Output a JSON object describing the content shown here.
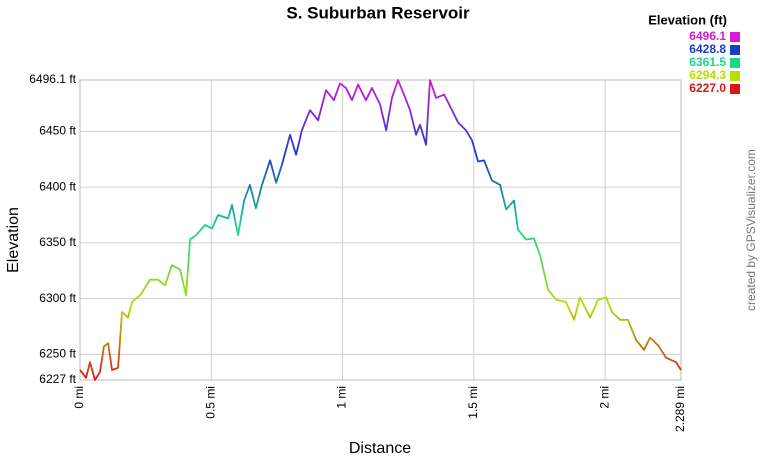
{
  "chart_data": {
    "type": "line",
    "title": "S. Suburban Reservoir",
    "x_label": "Distance",
    "y_label": "Elevation",
    "credit": "created by GPSVisualizer.com",
    "legend_title": "Elevation (ft)",
    "legend": [
      {
        "value": 6496.1,
        "label": "6496.1",
        "color": "#d41ad4"
      },
      {
        "value": 6428.8,
        "label": "6428.8",
        "color": "#1a3ccc"
      },
      {
        "value": 6361.5,
        "label": "6361.5",
        "color": "#1ad68a"
      },
      {
        "value": 6294.3,
        "label": "6294.3",
        "color": "#b4e000"
      },
      {
        "value": 6227,
        "label": "6227.0",
        "color": "#d81818"
      }
    ],
    "xlim": [
      0,
      2.289
    ],
    "ylim": [
      6227,
      6496.1
    ],
    "xticks": [
      {
        "value": 0,
        "label": "0 mi"
      },
      {
        "value": 0.5,
        "label": "0.5 mi"
      },
      {
        "value": 1,
        "label": "1 mi"
      },
      {
        "value": 1.5,
        "label": "1.5 mi"
      },
      {
        "value": 2,
        "label": "2 mi"
      },
      {
        "value": 2.289,
        "label": "2.289 mi"
      }
    ],
    "yticks": [
      {
        "value": 6227,
        "label": "6227 ft"
      },
      {
        "value": 6250,
        "label": "6250 ft"
      },
      {
        "value": 6300,
        "label": "6300 ft"
      },
      {
        "value": 6350,
        "label": "6350 ft"
      },
      {
        "value": 6400,
        "label": "6400 ft"
      },
      {
        "value": 6450,
        "label": "6450 ft"
      },
      {
        "value": 6496.1,
        "label": "6496.1 ft"
      }
    ],
    "grid": true,
    "x": [
      0,
      0.023,
      0.038,
      0.057,
      0.076,
      0.091,
      0.107,
      0.122,
      0.145,
      0.16,
      0.183,
      0.198,
      0.229,
      0.267,
      0.297,
      0.324,
      0.35,
      0.381,
      0.404,
      0.419,
      0.442,
      0.476,
      0.503,
      0.526,
      0.564,
      0.579,
      0.602,
      0.625,
      0.647,
      0.67,
      0.693,
      0.724,
      0.747,
      0.769,
      0.8,
      0.823,
      0.845,
      0.876,
      0.907,
      0.937,
      0.967,
      0.99,
      1.013,
      1.036,
      1.059,
      1.089,
      1.112,
      1.143,
      1.166,
      1.188,
      1.211,
      1.234,
      1.257,
      1.28,
      1.295,
      1.318,
      1.333,
      1.356,
      1.387,
      1.417,
      1.44,
      1.47,
      1.493,
      1.516,
      1.539,
      1.569,
      1.6,
      1.623,
      1.653,
      1.668,
      1.699,
      1.729,
      1.752,
      1.783,
      1.813,
      1.851,
      1.882,
      1.904,
      1.943,
      1.973,
      2.004,
      2.026,
      2.057,
      2.087,
      2.118,
      2.148,
      2.171,
      2.202,
      2.232,
      2.27,
      2.289
    ],
    "values": [
      6236,
      6229,
      6243,
      6227,
      6234,
      6257,
      6260,
      6236,
      6238,
      6288,
      6283,
      6297,
      6303,
      6317,
      6317,
      6312,
      6330,
      6326,
      6303,
      6353,
      6357,
      6366,
      6363,
      6375,
      6372,
      6384,
      6357,
      6388,
      6402,
      6381,
      6402,
      6424,
      6404,
      6420,
      6447,
      6429,
      6451,
      6469,
      6460,
      6487,
      6478,
      6493,
      6489,
      6478,
      6492,
      6478,
      6489,
      6474,
      6451,
      6480,
      6496.1,
      6483,
      6469,
      6447,
      6456,
      6438,
      6496,
      6480,
      6483,
      6469,
      6458,
      6451,
      6442,
      6423,
      6424,
      6406,
      6402,
      6380,
      6388,
      6362,
      6353,
      6354,
      6339,
      6308,
      6299,
      6297,
      6281,
      6301,
      6283,
      6299,
      6301,
      6288,
      6281,
      6281,
      6263,
      6254,
      6265,
      6258,
      6247,
      6243,
      6236
    ]
  }
}
